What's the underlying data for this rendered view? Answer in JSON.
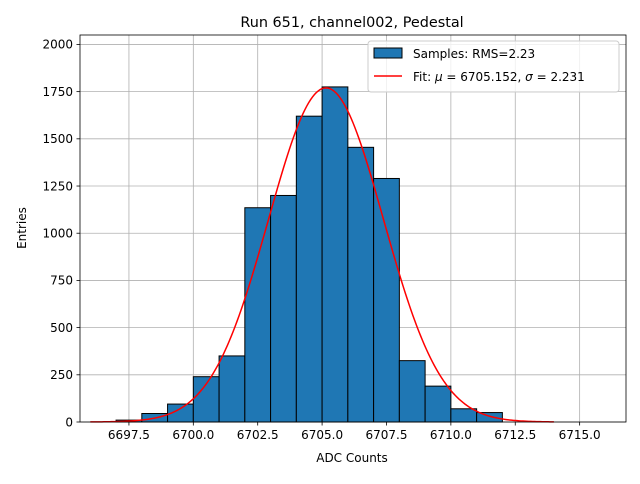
{
  "chart_data": {
    "type": "bar",
    "title": "Run 651, channel002, Pedestal",
    "xlabel": "ADC Counts",
    "ylabel": "Entries",
    "xlim": [
      6695.6,
      6716.8
    ],
    "ylim": [
      0,
      2050
    ],
    "xticks": [
      6697.5,
      6700.0,
      6702.5,
      6705.0,
      6707.5,
      6710.0,
      6712.5,
      6715.0
    ],
    "xtick_labels": [
      "6697.5",
      "6700.0",
      "6702.5",
      "6705.0",
      "6707.5",
      "6710.0",
      "6712.5",
      "6715.0"
    ],
    "yticks": [
      0,
      250,
      500,
      750,
      1000,
      1250,
      1500,
      1750,
      2000
    ],
    "ytick_labels": [
      "0",
      "250",
      "500",
      "750",
      "1000",
      "1250",
      "1500",
      "1750",
      "2000"
    ],
    "grid": true,
    "legend_position": "top-right",
    "histogram": {
      "name": "Samples: RMS=2.23",
      "color": "#1f77b4",
      "edge_color": "#000000",
      "bins": [
        {
          "left": 6697.0,
          "right": 6698.0,
          "count": 10
        },
        {
          "left": 6698.0,
          "right": 6699.0,
          "count": 45
        },
        {
          "left": 6699.0,
          "right": 6700.0,
          "count": 95
        },
        {
          "left": 6700.0,
          "right": 6701.0,
          "count": 240
        },
        {
          "left": 6701.0,
          "right": 6702.0,
          "count": 350
        },
        {
          "left": 6702.0,
          "right": 6703.0,
          "count": 1135
        },
        {
          "left": 6703.0,
          "right": 6704.0,
          "count": 1200
        },
        {
          "left": 6704.0,
          "right": 6705.0,
          "count": 1620
        },
        {
          "left": 6705.0,
          "right": 6706.0,
          "count": 1775
        },
        {
          "left": 6706.0,
          "right": 6707.0,
          "count": 1455
        },
        {
          "left": 6707.0,
          "right": 6708.0,
          "count": 1290
        },
        {
          "left": 6708.0,
          "right": 6709.0,
          "count": 325
        },
        {
          "left": 6709.0,
          "right": 6710.0,
          "count": 190
        },
        {
          "left": 6710.0,
          "right": 6711.0,
          "count": 70
        },
        {
          "left": 6711.0,
          "right": 6712.0,
          "count": 50
        }
      ]
    },
    "fit": {
      "label_prefix": "Fit: ",
      "label_mu_symbol": "μ",
      "label_mid": " = 6705.152, ",
      "label_sigma_symbol": "σ",
      "label_end": " = 2.231",
      "mu": 6705.152,
      "sigma": 2.231,
      "amplitude": 1770,
      "x_range": [
        6696.0,
        6714.0
      ],
      "color": "#ff0000"
    }
  }
}
